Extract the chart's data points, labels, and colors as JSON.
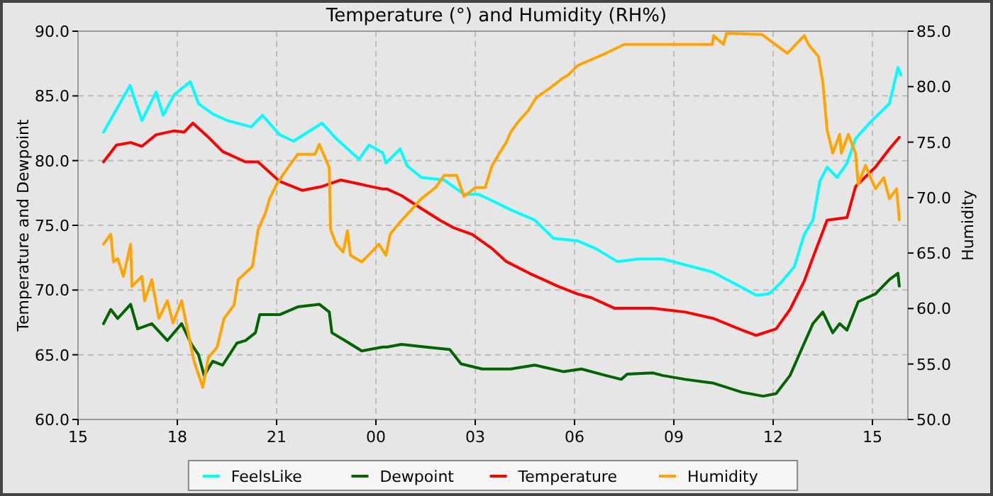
{
  "chart_data": {
    "type": "line",
    "title": "Temperature (°) and Humidity (RH%)",
    "ylabel": "Temperature and Dewpoint",
    "y2label": "Humidity",
    "xlim": [
      15,
      40.07
    ],
    "xticks": [
      {
        "value": 15,
        "label": "15"
      },
      {
        "value": 18,
        "label": "18"
      },
      {
        "value": 21,
        "label": "21"
      },
      {
        "value": 24,
        "label": "00"
      },
      {
        "value": 27,
        "label": "03"
      },
      {
        "value": 30,
        "label": "06"
      },
      {
        "value": 33,
        "label": "09"
      },
      {
        "value": 36,
        "label": "12"
      },
      {
        "value": 39,
        "label": "15"
      }
    ],
    "ylim": [
      60,
      90
    ],
    "yticks": [
      {
        "value": 60,
        "label": "60.0"
      },
      {
        "value": 65,
        "label": "65.0"
      },
      {
        "value": 70,
        "label": "70.0"
      },
      {
        "value": 75,
        "label": "75.0"
      },
      {
        "value": 80,
        "label": "80.0"
      },
      {
        "value": 85,
        "label": "85.0"
      },
      {
        "value": 90,
        "label": "90.0"
      }
    ],
    "y2lim": [
      50,
      85
    ],
    "y2ticks": [
      {
        "value": 50,
        "label": "50.0"
      },
      {
        "value": 55,
        "label": "55.0"
      },
      {
        "value": 60,
        "label": "60.0"
      },
      {
        "value": 65,
        "label": "65.0"
      },
      {
        "value": 70,
        "label": "70.0"
      },
      {
        "value": 75,
        "label": "75.0"
      },
      {
        "value": 80,
        "label": "80.0"
      },
      {
        "value": 85,
        "label": "85.0"
      }
    ],
    "grid": true,
    "legend": "bottom",
    "marker": "none",
    "line_style": "solid",
    "series": [
      {
        "name": "FeelsLike",
        "color": "#00ffff",
        "x": [
          15.77,
          16.57,
          16.93,
          17.36,
          17.57,
          17.91,
          18.39,
          18.64,
          19.07,
          19.5,
          20.23,
          20.57,
          21.09,
          21.51,
          21.94,
          22.37,
          22.8,
          23.49,
          23.79,
          24.21,
          24.3,
          24.73,
          24.94,
          25.37,
          26.06,
          26.66,
          27.09,
          27.51,
          28.07,
          28.8,
          29.36,
          30.09,
          30.64,
          31.29,
          31.93,
          32.36,
          32.66,
          34.16,
          35.06,
          35.49,
          35.87,
          36.21,
          36.64,
          36.94,
          37.2,
          37.41,
          37.63,
          37.93,
          38.23,
          38.49,
          38.91,
          39.51,
          39.77,
          39.86
        ],
        "values": [
          82.2,
          85.8,
          83.1,
          85.3,
          83.5,
          85.1,
          86.1,
          84.4,
          83.6,
          83.1,
          82.6,
          83.5,
          82.0,
          81.5,
          82.2,
          82.9,
          81.7,
          80.1,
          81.2,
          80.6,
          79.8,
          80.9,
          79.6,
          78.7,
          78.5,
          77.4,
          77.4,
          76.9,
          76.2,
          75.4,
          74.0,
          73.8,
          73.2,
          72.2,
          72.4,
          72.4,
          72.4,
          71.4,
          70.2,
          69.6,
          69.7,
          70.5,
          71.8,
          74.3,
          75.4,
          78.4,
          79.5,
          78.7,
          79.8,
          81.7,
          82.9,
          84.4,
          87.2,
          86.6
        ]
      },
      {
        "name": "Dewpoint",
        "color": "#006400",
        "x": [
          15.77,
          15.99,
          16.2,
          16.59,
          16.8,
          17.23,
          17.7,
          18.13,
          18.43,
          18.64,
          18.81,
          19.07,
          19.37,
          19.8,
          20.06,
          20.36,
          20.49,
          21.09,
          21.64,
          22.29,
          22.59,
          22.67,
          23.06,
          23.57,
          24.21,
          24.34,
          24.77,
          25.5,
          26.23,
          26.57,
          27.21,
          28.07,
          28.8,
          29.66,
          30.21,
          30.94,
          31.41,
          31.59,
          32.36,
          32.66,
          33.34,
          34.2,
          35.06,
          35.7,
          36.09,
          36.51,
          36.94,
          37.2,
          37.5,
          37.8,
          38.01,
          38.23,
          38.57,
          39.09,
          39.51,
          39.77,
          39.81
        ],
        "values": [
          67.4,
          68.5,
          67.8,
          68.9,
          67.0,
          67.4,
          66.1,
          67.4,
          65.8,
          65.0,
          63.4,
          64.5,
          64.2,
          65.9,
          66.1,
          66.7,
          68.1,
          68.1,
          68.7,
          68.9,
          68.3,
          66.7,
          66.1,
          65.3,
          65.6,
          65.6,
          65.8,
          65.6,
          65.4,
          64.3,
          63.9,
          63.9,
          64.2,
          63.7,
          63.9,
          63.4,
          63.1,
          63.5,
          63.6,
          63.4,
          63.1,
          62.8,
          62.1,
          61.8,
          62.0,
          63.4,
          65.9,
          67.4,
          68.3,
          66.7,
          67.4,
          66.9,
          69.1,
          69.7,
          70.8,
          71.3,
          70.3
        ]
      },
      {
        "name": "Temperature",
        "color": "#ff0000",
        "x": [
          15.77,
          16.16,
          16.59,
          16.93,
          17.36,
          17.91,
          18.21,
          18.47,
          18.94,
          19.37,
          20.06,
          20.44,
          21.09,
          21.77,
          22.37,
          22.93,
          23.49,
          24.21,
          24.34,
          24.77,
          25.37,
          25.93,
          26.36,
          26.91,
          27.51,
          27.94,
          28.63,
          29.49,
          30.09,
          30.51,
          31.2,
          31.93,
          32.36,
          33.34,
          34.2,
          35.06,
          35.49,
          36.09,
          36.51,
          36.94,
          37.2,
          37.63,
          38.23,
          38.49,
          39.09,
          39.51,
          39.81
        ],
        "values": [
          79.9,
          81.2,
          81.4,
          81.1,
          82.0,
          82.3,
          82.2,
          82.9,
          81.8,
          80.7,
          79.9,
          79.9,
          78.4,
          77.7,
          78.0,
          78.5,
          78.2,
          77.8,
          77.8,
          77.3,
          76.3,
          75.4,
          74.8,
          74.3,
          73.2,
          72.2,
          71.3,
          70.3,
          69.7,
          69.4,
          68.6,
          68.6,
          68.6,
          68.3,
          67.8,
          66.9,
          66.5,
          67.0,
          68.5,
          70.7,
          72.5,
          75.4,
          75.6,
          78.0,
          79.5,
          80.9,
          81.8
        ]
      },
      {
        "name": "Humidity",
        "color": "#ffa500",
        "axis": "y2",
        "x": [
          15.77,
          15.99,
          16.07,
          16.2,
          16.37,
          16.59,
          16.63,
          16.93,
          17.01,
          17.23,
          17.44,
          17.7,
          17.87,
          18.13,
          18.3,
          18.51,
          18.77,
          18.94,
          19.2,
          19.41,
          19.71,
          19.84,
          20.27,
          20.44,
          20.66,
          20.79,
          21.0,
          21.34,
          21.64,
          22.16,
          22.29,
          22.59,
          22.63,
          22.8,
          23.01,
          23.14,
          23.23,
          23.57,
          23.87,
          24.09,
          24.3,
          24.43,
          24.73,
          25.07,
          25.37,
          25.8,
          26.06,
          26.44,
          26.66,
          27.0,
          27.3,
          27.51,
          27.73,
          27.94,
          28.07,
          28.29,
          28.59,
          28.84,
          29.27,
          29.66,
          29.79,
          30.09,
          30.94,
          31.5,
          32.36,
          34.16,
          34.2,
          34.5,
          34.59,
          34.8,
          35.66,
          36.43,
          36.94,
          37.07,
          37.37,
          37.5,
          37.63,
          37.8,
          38.01,
          38.06,
          38.27,
          38.49,
          38.57,
          38.79,
          39.09,
          39.34,
          39.51,
          39.73,
          39.81
        ],
        "values": [
          65.8,
          66.7,
          64.2,
          64.5,
          62.9,
          65.8,
          62.0,
          62.9,
          60.7,
          62.6,
          59.1,
          60.7,
          58.7,
          60.7,
          58.2,
          55.2,
          52.9,
          55.6,
          56.5,
          59.1,
          60.3,
          62.6,
          63.8,
          67.1,
          68.6,
          69.9,
          71.2,
          72.7,
          73.9,
          73.9,
          74.8,
          72.7,
          67.1,
          65.8,
          65.1,
          67.0,
          64.8,
          64.2,
          65.1,
          65.8,
          64.8,
          66.7,
          67.8,
          68.9,
          69.9,
          70.9,
          72.0,
          72.0,
          70.1,
          70.9,
          70.9,
          72.9,
          74.0,
          75.0,
          75.9,
          76.8,
          77.8,
          79.0,
          79.9,
          80.8,
          81.0,
          81.9,
          83.0,
          83.8,
          83.8,
          83.8,
          84.6,
          83.8,
          84.8,
          84.8,
          84.7,
          83.0,
          84.6,
          83.8,
          82.7,
          80.4,
          76.1,
          74.0,
          75.7,
          74.0,
          75.7,
          74.0,
          71.2,
          72.9,
          70.8,
          71.8,
          69.9,
          70.8,
          68.0
        ]
      }
    ]
  }
}
